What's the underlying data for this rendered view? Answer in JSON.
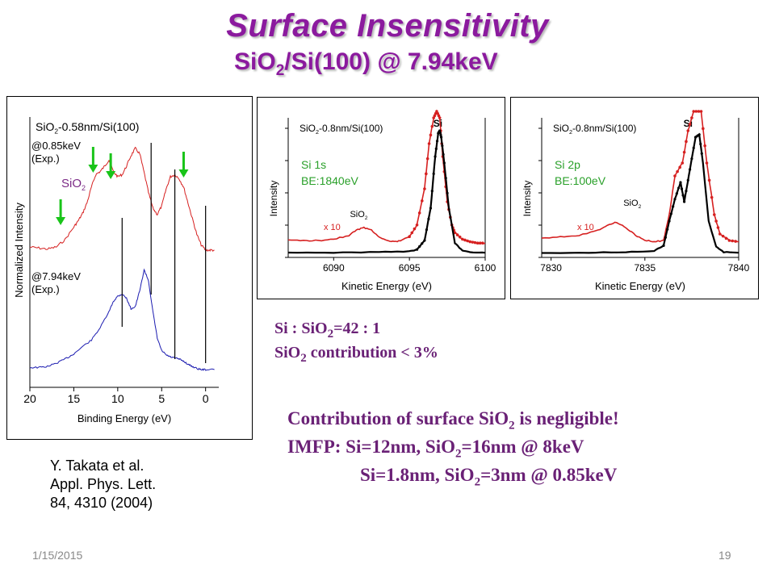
{
  "slide": {
    "title": "Surface Insensitivity",
    "subtitle_pre": "SiO",
    "subtitle_sub": "2",
    "subtitle_post": "/Si(100) @ 7.94keV",
    "ratio_line_a": "Si : SiO",
    "ratio_line_sub": "2",
    "ratio_line_b": "=42 : 1",
    "contrib_a": "SiO",
    "contrib_sub": "2",
    "contrib_b": " contribution < 3%",
    "concl_a": "Contribution of surface SiO",
    "concl_sub": "2",
    "concl_b": " is negligible!",
    "imfp1_a": "IMFP: Si=12nm, SiO",
    "imfp1_sub": "2",
    "imfp1_b": "=16nm @ 8keV",
    "imfp2_a": "Si=1.8nm, SiO",
    "imfp2_sub": "2",
    "imfp2_b": "=3nm @ 0.85keV",
    "citation": [
      "Y. Takata et al.",
      "Appl. Phys. Lett.",
      "84, 4310 (2004)"
    ],
    "date": "1/15/2015",
    "page": "19"
  },
  "colors": {
    "title": "#8b1a9e",
    "red": "#d62020",
    "black": "#000000",
    "blue": "#1b1bb0",
    "green": "#19c419",
    "annot": "#7b2a86"
  },
  "chart_data": [
    {
      "type": "line",
      "label_pre": "SiO",
      "label_sub": "2",
      "label_post": "-0.58nm/Si(100)",
      "xlabel": "Binding Energy (eV)",
      "ylabel": "Normalized Intensity",
      "xlim": [
        20,
        -1.5
      ],
      "xticks": [
        20,
        15,
        10,
        5,
        0
      ],
      "annotation_pre": "SiO",
      "annotation_sub": "2",
      "series": [
        {
          "name": "@0.85keV (Exp.)",
          "label_line1": "@0.85keV",
          "label_line2": "(Exp.)",
          "color": "#d62020",
          "x": [
            20,
            19,
            18,
            17,
            16,
            15,
            14.5,
            14,
            13.5,
            13,
            12.5,
            12,
            11.5,
            11,
            10.5,
            10,
            9.5,
            9,
            8.5,
            8,
            7.5,
            7,
            6.5,
            6,
            5.5,
            5,
            4.5,
            4,
            3.5,
            3,
            2.5,
            2,
            1.5,
            1,
            0.5,
            0,
            -0.5,
            -1
          ],
          "y": [
            0.03,
            0.02,
            0.01,
            0.03,
            0.1,
            0.22,
            0.28,
            0.35,
            0.45,
            0.6,
            0.72,
            0.75,
            0.8,
            0.86,
            0.75,
            0.7,
            0.72,
            0.8,
            0.9,
            0.97,
            0.92,
            0.74,
            0.55,
            0.4,
            0.34,
            0.42,
            0.58,
            0.7,
            0.72,
            0.68,
            0.6,
            0.45,
            0.3,
            0.15,
            0.05,
            0.0,
            0.0,
            0.0
          ]
        },
        {
          "name": "@7.94keV (Exp.)",
          "label_line1": "@7.94keV",
          "label_line2": "(Exp.)",
          "color": "#1b1bb0",
          "x": [
            20,
            19,
            18,
            17,
            16,
            15,
            14,
            13,
            12,
            11,
            10.5,
            10,
            9.5,
            9,
            8.5,
            8,
            7.5,
            7,
            6.5,
            6,
            5.5,
            5,
            4.5,
            4,
            3.5,
            3,
            2.5,
            2,
            1.5,
            1,
            0.5,
            0,
            -1
          ],
          "y": [
            0.02,
            0.02,
            0.03,
            0.06,
            0.1,
            0.15,
            0.22,
            0.28,
            0.4,
            0.55,
            0.65,
            0.7,
            0.72,
            0.68,
            0.58,
            0.6,
            0.75,
            0.95,
            0.85,
            0.55,
            0.3,
            0.18,
            0.14,
            0.12,
            0.11,
            0.1,
            0.08,
            0.05,
            0.03,
            0.01,
            0.0,
            0.0,
            0.0
          ]
        }
      ],
      "marker_lines_x": [
        9.5,
        6.2,
        3.5,
        0.0
      ],
      "arrows_x": [
        16.5,
        12.8,
        10.8,
        2.5
      ]
    },
    {
      "type": "line",
      "label_pre": "SiO",
      "label_sub": "2",
      "label_post": "-0.8nm/Si(100)",
      "peak_label": "Si",
      "core_level": "Si 1s",
      "binding_energy": "BE:1840eV",
      "scale_label": "x 10",
      "oxide_label_pre": "SiO",
      "oxide_label_sub": "2",
      "xlabel": "Kinetic Energy (eV)",
      "ylabel": "Intensity",
      "xlim": [
        6087,
        6100
      ],
      "xticks": [
        6090,
        6095,
        6100
      ],
      "series": [
        {
          "name": "x 10",
          "color": "#d62020",
          "x": [
            6087,
            6088,
            6089,
            6090,
            6091,
            6091.5,
            6092,
            6092.5,
            6093,
            6093.5,
            6094,
            6094.5,
            6095,
            6095.5,
            6096,
            6096.3,
            6096.6,
            6096.8,
            6097,
            6097.2,
            6097.5,
            6097.8,
            6098,
            6098.5,
            6099,
            6099.5,
            6100
          ],
          "y": [
            0.1,
            0.1,
            0.1,
            0.11,
            0.14,
            0.18,
            0.2,
            0.18,
            0.13,
            0.1,
            0.09,
            0.1,
            0.13,
            0.22,
            0.5,
            0.85,
            1.05,
            1.1,
            1.05,
            0.75,
            0.4,
            0.22,
            0.16,
            0.11,
            0.09,
            0.08,
            0.08
          ]
        },
        {
          "name": "Si",
          "color": "#000000",
          "x": [
            6087,
            6090,
            6093,
            6095,
            6095.5,
            6096,
            6096.4,
            6096.7,
            6096.9,
            6097,
            6097.1,
            6097.3,
            6097.6,
            6098,
            6098.5,
            6099,
            6100
          ],
          "y": [
            0.005,
            0.005,
            0.01,
            0.015,
            0.03,
            0.1,
            0.35,
            0.75,
            0.93,
            0.95,
            0.9,
            0.7,
            0.35,
            0.08,
            0.02,
            0.01,
            0.005
          ]
        }
      ]
    },
    {
      "type": "line",
      "label_pre": "SiO",
      "label_sub": "2",
      "label_post": "-0.8nm/Si(100)",
      "peak_label": "Si",
      "core_level": "Si 2p",
      "binding_energy": "BE:100eV",
      "scale_label": "x 10",
      "oxide_label_pre": "SiO",
      "oxide_label_sub": "2",
      "xlabel": "Kinetic Energy (eV)",
      "ylabel": "Intensity",
      "xlim": [
        7829.5,
        7840
      ],
      "xticks": [
        7830,
        7835,
        7840
      ],
      "series": [
        {
          "name": "x 10",
          "color": "#d62020",
          "x": [
            7829.5,
            7830.5,
            7831.5,
            7832.5,
            7833,
            7833.5,
            7834,
            7834.5,
            7835,
            7835.5,
            7836,
            7836.3,
            7836.6,
            7837,
            7837.3,
            7837.6,
            7838,
            7838.3,
            7838.7,
            7839,
            7839.5,
            7840
          ],
          "y": [
            0.12,
            0.13,
            0.14,
            0.18,
            0.22,
            0.24,
            0.2,
            0.14,
            0.1,
            0.09,
            0.1,
            0.3,
            0.6,
            0.7,
            0.95,
            1.1,
            1.1,
            0.7,
            0.3,
            0.15,
            0.1,
            0.09
          ]
        },
        {
          "name": "Si",
          "color": "#000000",
          "x": [
            7829.5,
            7832,
            7834,
            7835.5,
            7836,
            7836.3,
            7836.6,
            7836.9,
            7837.1,
            7837.4,
            7837.7,
            7837.9,
            7838.1,
            7838.4,
            7838.8,
            7839.2,
            7840
          ],
          "y": [
            0.005,
            0.005,
            0.01,
            0.02,
            0.06,
            0.25,
            0.42,
            0.55,
            0.4,
            0.65,
            0.9,
            0.92,
            0.7,
            0.25,
            0.05,
            0.01,
            0.005
          ]
        }
      ]
    }
  ]
}
